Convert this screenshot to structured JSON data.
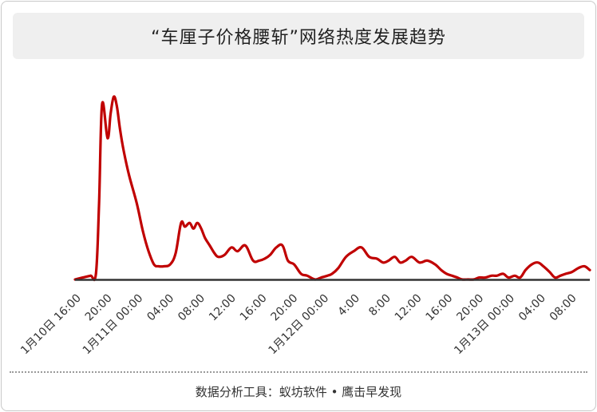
{
  "title": "“车厘子价格腰斩”网络热度发展趋势",
  "source": "数据分析工具：蚁坊软件 • 鹰击早发现",
  "colors": {
    "line": "#c00000",
    "axis": "#333333",
    "title_bg": "#efefef"
  },
  "chart_data": {
    "type": "line",
    "title": "“车厘子价格腰斩”网络热度发展趋势",
    "xlabel": "",
    "ylabel": "",
    "grid": false,
    "legend": "none",
    "x_ticks": [
      "1月10日 16:00",
      "20:00",
      "1月11日 00:00",
      "04:00",
      "08:00",
      "12:00",
      "16:00",
      "20:00",
      "1月12日 00:00",
      "4:00",
      "8:00",
      "12:00",
      "16:00",
      "20:00",
      "1月13日 00:00",
      "04:00",
      "08:00"
    ],
    "x_hours": [
      0,
      4,
      8,
      12,
      16,
      20,
      24,
      28,
      32,
      36,
      40,
      44,
      48,
      52,
      56,
      60,
      64
    ],
    "xlim": [
      0,
      66.5
    ],
    "ylim": [
      0,
      100
    ],
    "series": [
      {
        "x": [
          0,
          1,
          2,
          2.7,
          3.1,
          3.5,
          4.2,
          4.6,
          5.0,
          5.4,
          5.8,
          6.3,
          7.0,
          8.0,
          8.8,
          9.5,
          10.2,
          10.8,
          11.5,
          12.3,
          13.0,
          13.7,
          14.2,
          14.8,
          15.3,
          15.8,
          16.3,
          16.8,
          17.4,
          18.0,
          18.5,
          19.3,
          20.2,
          21.0,
          22.0,
          23.0,
          23.8,
          24.5,
          25.2,
          26.0,
          26.8,
          27.5,
          28.3,
          29.2,
          30.0,
          31.0,
          31.8,
          32.6,
          33.2,
          34.0,
          35.0,
          36.0,
          37.0,
          38.0,
          39.0,
          39.8,
          40.5,
          41.3,
          42.0,
          42.7,
          43.5,
          44.5,
          45.5,
          46.5,
          47.3,
          48.0,
          48.7,
          49.4,
          50.0,
          50.8,
          51.5,
          52.2,
          53.0,
          53.8,
          54.5,
          55.3,
          56.0,
          56.8,
          57.5,
          58.2,
          59.0,
          59.8,
          60.5,
          61.3,
          62.0,
          62.7,
          63.4,
          64.2,
          65.0,
          65.8,
          66.5
        ],
        "y": [
          0,
          1,
          2,
          3,
          40,
          93,
          75,
          88,
          97,
          92,
          80,
          68,
          55,
          40,
          25,
          15,
          8,
          7,
          7,
          8,
          14,
          30,
          28,
          30,
          27,
          30,
          27,
          22,
          18,
          14,
          12,
          13,
          17,
          15,
          18,
          10,
          10,
          11,
          13,
          17,
          18,
          10,
          8,
          3,
          2,
          0,
          1,
          2,
          3,
          6,
          12,
          15,
          17,
          12,
          11,
          9,
          10,
          12,
          9,
          10,
          12,
          9,
          10,
          8,
          5,
          3,
          2,
          1,
          0,
          0,
          0,
          1,
          1,
          2,
          2,
          3,
          1,
          2,
          1,
          5,
          8,
          9,
          7,
          4,
          1,
          2,
          3,
          4,
          6,
          7,
          5
        ]
      }
    ]
  }
}
